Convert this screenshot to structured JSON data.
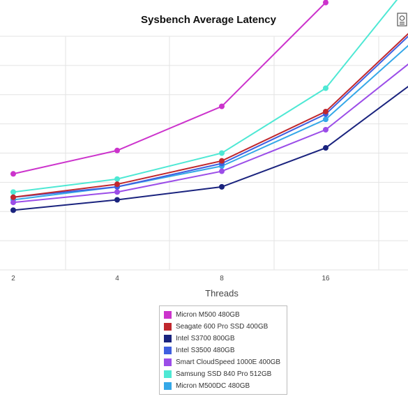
{
  "chart_data": {
    "type": "line",
    "title": "Sysbench Average Latency",
    "xlabel": "Threads",
    "ylabel": "",
    "categories": [
      "2",
      "4",
      "8",
      "16"
    ],
    "grid": true,
    "legend_position": "bottom",
    "series": [
      {
        "name": "Micron M500 480GB",
        "color": "#cc33cc",
        "values": [
          3.7,
          4.6,
          6.3,
          10.3
        ]
      },
      {
        "name": "Seagate 600 Pro SSD 400GB",
        "color": "#c0272d",
        "values": [
          2.8,
          3.3,
          4.2,
          6.1
        ]
      },
      {
        "name": "Intel S3700 800GB",
        "color": "#1a237e",
        "values": [
          2.3,
          2.7,
          3.2,
          4.7
        ]
      },
      {
        "name": "Intel S3500 480GB",
        "color": "#3f5fe0",
        "values": [
          2.8,
          3.2,
          4.1,
          6.0
        ]
      },
      {
        "name": "Smart CloudSpeed 1000E 400GB",
        "color": "#9b4de8",
        "values": [
          2.6,
          3.0,
          3.8,
          5.4
        ]
      },
      {
        "name": "Samsung SSD 840 Pro 512GB",
        "color": "#4ee8d4",
        "values": [
          3.0,
          3.5,
          4.5,
          7.0
        ]
      },
      {
        "name": "Micron M500DC 480GB",
        "color": "#35a8e8",
        "values": [
          2.7,
          3.2,
          4.0,
          5.8
        ]
      }
    ]
  }
}
